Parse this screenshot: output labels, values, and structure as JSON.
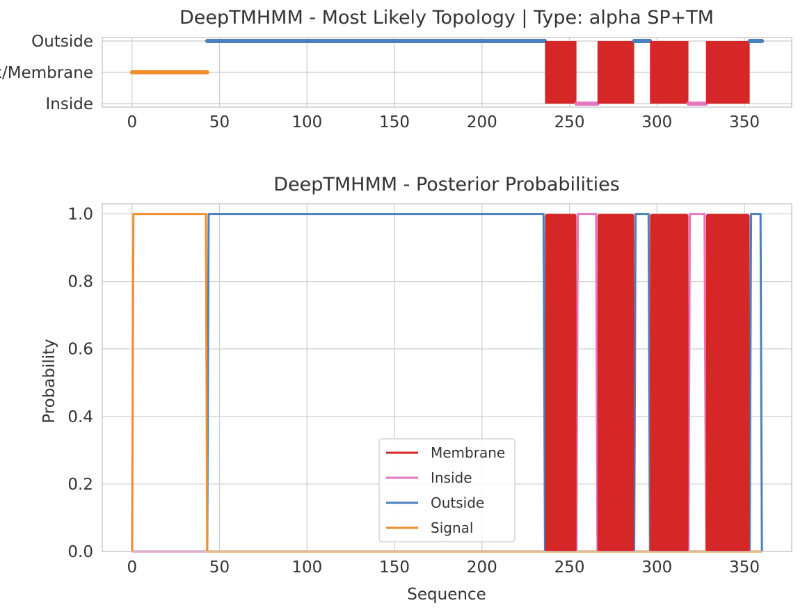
{
  "colors": {
    "membrane": "#d62728",
    "inside": "#e377c2",
    "outside": "#4c7fbf",
    "signal": "#f28e2b",
    "grid": "#cccccc",
    "frame": "#cccccc"
  },
  "chart_data": [
    {
      "type": "line",
      "title": "DeepTMHMM - Most Likely Topology | Type: alpha SP+TM",
      "xlabel": "",
      "ylabel": "",
      "xlim": [
        -17,
        377
      ],
      "xticks": [
        0,
        50,
        100,
        150,
        200,
        250,
        300,
        350
      ],
      "y_categories": [
        "Inside",
        "TMhelix/Membrane",
        "Outside"
      ],
      "segments": [
        {
          "state": "Signal",
          "level": "TMhelix/Membrane",
          "start": 0,
          "end": 43
        },
        {
          "state": "Outside",
          "level": "Outside",
          "start": 43,
          "end": 236
        },
        {
          "state": "Membrane",
          "start": 236,
          "end": 254
        },
        {
          "state": "Inside",
          "level": "Inside",
          "start": 254,
          "end": 266
        },
        {
          "state": "Membrane",
          "start": 266,
          "end": 287
        },
        {
          "state": "Outside",
          "level": "Outside",
          "start": 287,
          "end": 296
        },
        {
          "state": "Membrane",
          "start": 296,
          "end": 318
        },
        {
          "state": "Inside",
          "level": "Inside",
          "start": 318,
          "end": 328
        },
        {
          "state": "Membrane",
          "start": 328,
          "end": 353
        },
        {
          "state": "Outside",
          "level": "Outside",
          "start": 353,
          "end": 360
        }
      ]
    },
    {
      "type": "line",
      "title": "DeepTMHMM - Posterior Probabilities",
      "xlabel": "Sequence",
      "ylabel": "Probability",
      "xlim": [
        -17,
        377
      ],
      "ylim": [
        0,
        1.03
      ],
      "xticks": [
        0,
        50,
        100,
        150,
        200,
        250,
        300,
        350
      ],
      "yticks": [
        0.0,
        0.2,
        0.4,
        0.6,
        0.8,
        1.0
      ],
      "legend_position": "lower center",
      "series": [
        {
          "name": "Membrane",
          "color_key": "membrane",
          "segments": [
            {
              "start": 236,
              "end": 254
            },
            {
              "start": 266,
              "end": 287
            },
            {
              "start": 296,
              "end": 318
            },
            {
              "start": 328,
              "end": 353
            }
          ]
        },
        {
          "name": "Inside",
          "color_key": "inside",
          "segments": [
            {
              "start": 254,
              "end": 266
            },
            {
              "start": 318,
              "end": 328
            }
          ]
        },
        {
          "name": "Outside",
          "color_key": "outside",
          "segments": [
            {
              "start": 43,
              "end": 236
            },
            {
              "start": 287,
              "end": 296
            },
            {
              "start": 353,
              "end": 360
            }
          ]
        },
        {
          "name": "Signal",
          "color_key": "signal",
          "segments": [
            {
              "start": 0,
              "end": 43
            }
          ]
        }
      ],
      "sequence_length": 360
    }
  ]
}
